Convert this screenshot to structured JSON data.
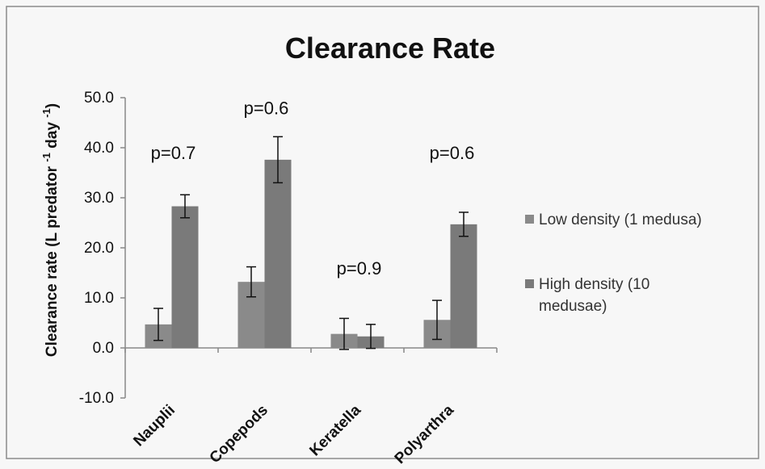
{
  "chart_data": {
    "type": "bar",
    "title": "Clearance Rate",
    "ylabel_main": "Clearance rate (L predator ",
    "ylabel_sup1": "-1",
    "ylabel_mid": " day ",
    "ylabel_sup2": "-1",
    "ylabel_end": ")",
    "ylim": [
      -10,
      50
    ],
    "yticks": [
      "-10.0",
      "0.0",
      "10.0",
      "20.0",
      "30.0",
      "40.0",
      "50.0"
    ],
    "categories": [
      "Nauplii",
      "Copepods",
      "Keratella",
      "Polyarthra"
    ],
    "series": [
      {
        "name": "Low density (1 medusa)",
        "values": [
          4.7,
          13.2,
          2.8,
          5.6
        ],
        "errors": [
          3.2,
          3.0,
          3.1,
          3.9
        ],
        "color": "#8a8a8a"
      },
      {
        "name": "High density (10 medusae)",
        "values": [
          28.3,
          37.6,
          2.3,
          24.7
        ],
        "errors": [
          2.3,
          4.6,
          2.4,
          2.4
        ],
        "color": "#7a7a7a"
      }
    ],
    "annotations": [
      "p=0.7",
      "p=0.6",
      "p=0.9",
      "p=0.6"
    ],
    "annotation_levels": [
      39,
      48,
      16,
      39
    ],
    "legend_position": "right",
    "legend_lines": [
      [
        "Low density (1 medusa)"
      ],
      [
        "High density (10",
        "medusae)"
      ]
    ],
    "grid": false
  }
}
